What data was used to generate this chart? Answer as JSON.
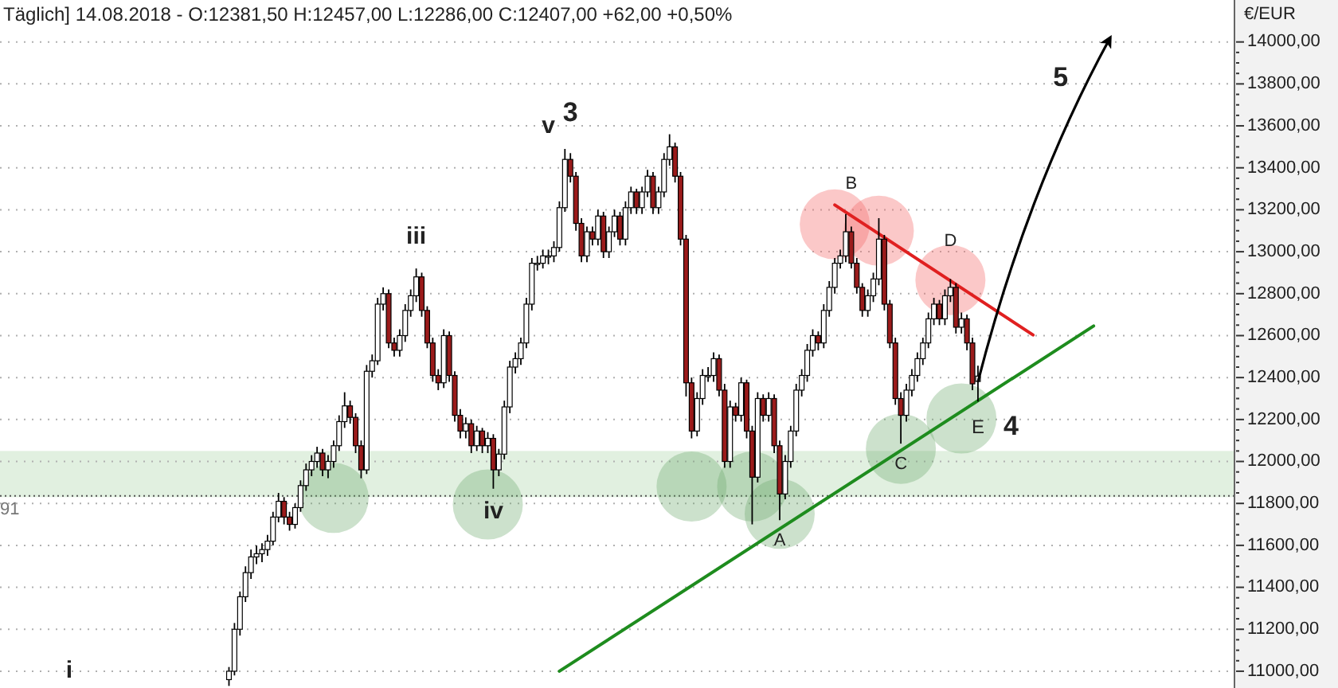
{
  "chart_data": {
    "type": "candlestick",
    "title": "Täglich] 14.08.2018 - O:12381,50 H:12457,00 L:12286,00 C:12407,00 +62,00 +0,50%",
    "ylabel": "€/EUR",
    "colors": [
      null,
      null,
      null,
      null,
      null,
      null,
      null,
      null,
      null,
      null,
      null,
      null,
      null,
      null,
      null,
      null,
      null,
      null,
      null,
      null,
      null,
      null,
      null,
      null,
      null,
      null,
      null,
      null,
      null,
      null,
      null,
      null,
      null,
      null,
      null,
      null,
      null,
      null,
      null,
      null,
      null,
      "#ffffff",
      "#ffffff",
      "#ffffff",
      "#ffffff",
      "#ffffff",
      "#ffffff",
      "#ffffff",
      "#ffffff",
      "#ffffff",
      "#ffffff",
      "#9b1b1b",
      "#9b1b1b",
      "#ffffff",
      "#ffffff",
      "#ffffff",
      "#ffffff",
      "#ffffff",
      "#9b1b1b",
      "#ffffff",
      "#ffffff",
      "#ffffff",
      "#ffffff",
      "#9b1b1b",
      "#9b1b1b",
      "#9b1b1b",
      "#ffffff",
      "#ffffff",
      "#ffffff",
      "#ffffff",
      "#9b1b1b",
      "#9b1b1b",
      "#ffffff",
      "#ffffff",
      "#ffffff",
      "#ffffff",
      "#9b1b1b",
      "#9b1b1b",
      "#9b1b1b",
      "#9b1b1b",
      "#ffffff",
      "#9b1b1b",
      "#9b1b1b",
      "#9b1b1b",
      "#ffffff",
      "#9b1b1b",
      "#ffffff",
      "#9b1b1b",
      "#ffffff",
      "#9b1b1b",
      "#ffffff",
      "#ffffff",
      "#ffffff",
      "#ffffff",
      "#ffffff",
      "#ffffff",
      "#ffffff",
      "#ffffff",
      "#ffffff",
      "#ffffff",
      "#ffffff",
      "#ffffff",
      "#ffffff",
      "#9b1b1b",
      "#9b1b1b",
      "#9b1b1b",
      "#ffffff",
      "#9b1b1b",
      "#ffffff",
      "#9b1b1b",
      "#ffffff",
      "#ffffff",
      "#9b1b1b",
      "#ffffff",
      "#ffffff",
      "#9b1b1b",
      "#ffffff",
      "#ffffff",
      "#9b1b1b",
      "#ffffff",
      "#ffffff",
      "#ffffff",
      "#9b1b1b",
      "#9b1b1b",
      "#9b1b1b",
      "#9b1b1b",
      "#ffffff",
      "#ffffff",
      "#ffffff",
      "#ffffff",
      "#9b1b1b",
      "#9b1b1b",
      "#ffffff",
      "#9b1b1b",
      "#ffffff",
      "#9b1b1b",
      "#9b1b1b",
      "#ffffff",
      "#9b1b1b",
      "#ffffff",
      "#9b1b1b",
      "#9b1b1b",
      "#ffffff",
      "#ffffff",
      "#ffffff",
      "#ffffff",
      "#ffffff",
      "#ffffff",
      "#9b1b1b",
      "#ffffff",
      "#ffffff",
      "#ffffff",
      "#ffffff",
      "#ffffff",
      "#9b1b1b",
      "#9b1b1b",
      "#9b1b1b",
      "#ffffff",
      "#ffffff",
      "#ffffff",
      "#9b1b1b",
      "#9b1b1b",
      "#9b1b1b",
      "#9b1b1b",
      "#ffffff",
      "#ffffff",
      "#ffffff",
      "#ffffff",
      "#ffffff",
      "#ffffff",
      "#9b1b1b",
      "#ffffff",
      "#ffffff",
      "#9b1b1b",
      "#ffffff",
      "#9b1b1b",
      "#9b1b1b",
      "#ffffff",
      null,
      null,
      null,
      null,
      null,
      null,
      null,
      null,
      null,
      null,
      null,
      null,
      null,
      null,
      null,
      null,
      null,
      null,
      null,
      null,
      null,
      null,
      null,
      null,
      null,
      null,
      null,
      null,
      null,
      null,
      null,
      null,
      null,
      null,
      null,
      null,
      null,
      null,
      null,
      null,
      null,
      null,
      null,
      null,
      null,
      null
    ],
    "grid": "y",
    "categories": [
      null,
      null,
      null,
      null,
      null,
      null,
      null,
      null,
      null,
      null,
      null,
      null,
      null,
      null,
      null,
      null,
      null,
      null,
      null,
      null,
      null,
      null,
      null,
      null,
      null,
      null,
      null,
      null,
      null,
      null,
      null,
      null,
      null,
      null,
      null,
      null,
      null,
      null,
      null,
      null,
      null,
      null,
      null,
      null,
      null,
      null,
      null,
      null,
      null,
      null,
      null,
      null,
      null,
      null,
      null,
      null,
      null,
      null,
      null,
      null,
      null,
      null,
      null,
      null,
      null,
      null,
      null,
      null,
      null,
      null,
      null,
      null,
      null,
      null,
      null,
      null,
      null,
      null,
      null,
      null,
      null,
      null,
      null,
      null,
      null,
      null,
      null,
      null,
      null,
      null,
      null,
      null,
      null,
      null,
      null,
      null,
      null,
      null,
      null,
      null,
      null,
      null,
      null,
      null,
      null,
      null,
      null,
      null,
      null,
      null,
      null,
      null,
      null,
      null,
      null,
      null,
      null,
      null,
      null,
      null,
      null,
      null,
      null,
      null,
      null,
      null,
      null,
      null,
      null,
      null,
      null,
      null,
      null,
      null,
      null,
      null,
      null,
      null,
      null,
      null,
      null,
      null,
      null,
      null,
      null,
      null,
      null,
      null,
      null,
      null,
      null,
      null,
      null,
      null,
      null,
      null,
      null,
      null,
      null,
      null,
      null,
      null,
      null,
      null,
      null,
      null,
      null,
      null,
      null,
      null,
      null,
      null,
      null,
      null,
      null,
      null,
      null,
      null,
      null,
      null,
      null,
      null,
      null,
      null,
      null,
      null,
      null,
      null,
      null,
      null,
      null,
      null,
      null,
      null,
      null,
      null,
      null,
      null,
      null,
      null,
      null,
      null,
      null,
      null,
      null,
      null,
      null,
      null,
      null,
      null,
      null,
      null,
      null,
      null,
      null,
      null,
      null,
      null,
      null,
      null,
      null,
      null,
      null,
      null
    ],
    "ohlc": [
      null,
      null,
      null,
      null,
      null,
      null,
      null,
      null,
      null,
      null,
      null,
      null,
      null,
      null,
      null,
      null,
      null,
      null,
      null,
      null,
      null,
      null,
      null,
      null,
      null,
      null,
      null,
      null,
      null,
      null,
      null,
      null,
      null,
      null,
      null,
      null,
      null,
      null,
      null,
      null,
      null,
      [
        10960,
        11020,
        10930,
        11000
      ],
      [
        11000,
        11230,
        10980,
        11200
      ],
      [
        11200,
        11380,
        11170,
        11355
      ],
      [
        11355,
        11500,
        11330,
        11470
      ],
      [
        11470,
        11580,
        11440,
        11545
      ],
      [
        11545,
        11600,
        11510,
        11560
      ],
      [
        11560,
        11610,
        11520,
        11580
      ],
      [
        11580,
        11650,
        11550,
        11620
      ],
      [
        11620,
        11760,
        11600,
        11735
      ],
      [
        11735,
        11850,
        11710,
        11810
      ],
      [
        11810,
        11830,
        11700,
        11735
      ],
      [
        11735,
        11760,
        11670,
        11700
      ],
      [
        11700,
        11800,
        11680,
        11780
      ],
      [
        11780,
        11910,
        11760,
        11885
      ],
      [
        11885,
        11990,
        11860,
        11960
      ],
      [
        11960,
        12030,
        11930,
        12000
      ],
      [
        12000,
        12070,
        11970,
        12040
      ],
      [
        12040,
        12060,
        11930,
        11960
      ],
      [
        11960,
        12030,
        11920,
        12000
      ],
      [
        12000,
        12100,
        11970,
        12075
      ],
      [
        12075,
        12220,
        12050,
        12190
      ],
      [
        12190,
        12330,
        12160,
        12265
      ],
      [
        12265,
        12290,
        12180,
        12210
      ],
      [
        12210,
        12230,
        12040,
        12075
      ],
      [
        12075,
        12100,
        11920,
        11960
      ],
      [
        11960,
        12460,
        11940,
        12430
      ],
      [
        12430,
        12510,
        12400,
        12480
      ],
      [
        12480,
        12780,
        12460,
        12750
      ],
      [
        12750,
        12830,
        12720,
        12800
      ],
      [
        12800,
        12820,
        12540,
        12565
      ],
      [
        12565,
        12590,
        12500,
        12530
      ],
      [
        12530,
        12630,
        12500,
        12600
      ],
      [
        12600,
        12750,
        12570,
        12720
      ],
      [
        12720,
        12820,
        12690,
        12790
      ],
      [
        12790,
        12920,
        12760,
        12880
      ],
      [
        12880,
        12900,
        12690,
        12720
      ],
      [
        12720,
        12740,
        12540,
        12565
      ],
      [
        12565,
        12590,
        12380,
        12410
      ],
      [
        12410,
        12440,
        12340,
        12375
      ],
      [
        12375,
        12630,
        12350,
        12600
      ],
      [
        12600,
        12620,
        12380,
        12410
      ],
      [
        12410,
        12430,
        12190,
        12220
      ],
      [
        12220,
        12250,
        12110,
        12145
      ],
      [
        12145,
        12210,
        12110,
        12180
      ],
      [
        12180,
        12200,
        12040,
        12075
      ],
      [
        12075,
        12170,
        12050,
        12145
      ],
      [
        12145,
        12160,
        12040,
        12075
      ],
      [
        12075,
        12140,
        12040,
        12110
      ],
      [
        12110,
        12130,
        11870,
        11960
      ],
      [
        11960,
        12060,
        11930,
        12035
      ],
      [
        12035,
        12290,
        12010,
        12260
      ],
      [
        12260,
        12480,
        12230,
        12450
      ],
      [
        12450,
        12520,
        12420,
        12490
      ],
      [
        12490,
        12590,
        12460,
        12565
      ],
      [
        12565,
        12780,
        12540,
        12750
      ],
      [
        12750,
        12970,
        12720,
        12945
      ],
      [
        12945,
        12980,
        12910,
        12945
      ],
      [
        12945,
        13010,
        12920,
        12980
      ],
      [
        12980,
        13010,
        12940,
        12980
      ],
      [
        12980,
        13050,
        12950,
        13020
      ],
      [
        13020,
        13240,
        13000,
        13210
      ],
      [
        13210,
        13490,
        13190,
        13440
      ],
      [
        13440,
        13470,
        13330,
        13360
      ],
      [
        13360,
        13380,
        13100,
        13135
      ],
      [
        13135,
        13160,
        12950,
        12980
      ],
      [
        12980,
        13120,
        12950,
        13095
      ],
      [
        13095,
        13120,
        13030,
        13060
      ],
      [
        13060,
        13200,
        13030,
        13170
      ],
      [
        13170,
        13190,
        12970,
        13000
      ],
      [
        13000,
        13120,
        12970,
        13095
      ],
      [
        13095,
        13200,
        13070,
        13170
      ],
      [
        13170,
        13190,
        13030,
        13060
      ],
      [
        13060,
        13240,
        13030,
        13210
      ],
      [
        13210,
        13310,
        13180,
        13285
      ],
      [
        13285,
        13300,
        13180,
        13210
      ],
      [
        13210,
        13310,
        13180,
        13285
      ],
      [
        13285,
        13390,
        13260,
        13360
      ],
      [
        13360,
        13380,
        13180,
        13210
      ],
      [
        13210,
        13310,
        13180,
        13285
      ],
      [
        13285,
        13470,
        13260,
        13440
      ],
      [
        13440,
        13560,
        13410,
        13500
      ],
      [
        13500,
        13520,
        13330,
        13360
      ],
      [
        13360,
        13380,
        13030,
        13060
      ],
      [
        13060,
        13080,
        12310,
        12375
      ],
      [
        12375,
        12400,
        12110,
        12145
      ],
      [
        12145,
        12330,
        12120,
        12300
      ],
      [
        12300,
        12440,
        12270,
        12410
      ],
      [
        12410,
        12450,
        12380,
        12410
      ],
      [
        12410,
        12520,
        12380,
        12490
      ],
      [
        12490,
        12510,
        12310,
        12340
      ],
      [
        12340,
        12370,
        11970,
        12000
      ],
      [
        12000,
        12290,
        11970,
        12260
      ],
      [
        12260,
        12280,
        12190,
        12220
      ],
      [
        12220,
        12400,
        12190,
        12375
      ],
      [
        12375,
        12390,
        12110,
        12145
      ],
      [
        12145,
        12170,
        11700,
        11925
      ],
      [
        11925,
        12330,
        11900,
        12300
      ],
      [
        12300,
        12320,
        12190,
        12220
      ],
      [
        12220,
        12330,
        12190,
        12300
      ],
      [
        12300,
        12320,
        12040,
        12075
      ],
      [
        12075,
        12100,
        11720,
        11845
      ],
      [
        11845,
        12030,
        11820,
        12000
      ],
      [
        12000,
        12170,
        11970,
        12145
      ],
      [
        12145,
        12370,
        12120,
        12340
      ],
      [
        12340,
        12440,
        12310,
        12410
      ],
      [
        12410,
        12560,
        12380,
        12530
      ],
      [
        12530,
        12630,
        12500,
        12600
      ],
      [
        12600,
        12620,
        12530,
        12565
      ],
      [
        12565,
        12750,
        12540,
        12720
      ],
      [
        12720,
        12860,
        12690,
        12830
      ],
      [
        12830,
        12970,
        12800,
        12945
      ],
      [
        12945,
        13010,
        12920,
        12980
      ],
      [
        12980,
        13180,
        12950,
        13095
      ],
      [
        13095,
        13120,
        12920,
        12945
      ],
      [
        12945,
        12970,
        12800,
        12830
      ],
      [
        12830,
        12850,
        12690,
        12720
      ],
      [
        12720,
        12820,
        12690,
        12790
      ],
      [
        12790,
        12900,
        12760,
        12870
      ],
      [
        12870,
        13160,
        12840,
        13060
      ],
      [
        13060,
        13080,
        12720,
        12750
      ],
      [
        12750,
        12770,
        12540,
        12565
      ],
      [
        12565,
        12590,
        12270,
        12300
      ],
      [
        12300,
        12330,
        12085,
        12220
      ],
      [
        12220,
        12370,
        12190,
        12340
      ],
      [
        12340,
        12440,
        12310,
        12410
      ],
      [
        12410,
        12520,
        12380,
        12490
      ],
      [
        12490,
        12590,
        12460,
        12565
      ],
      [
        12565,
        12710,
        12540,
        12680
      ],
      [
        12680,
        12780,
        12650,
        12750
      ],
      [
        12750,
        12770,
        12650,
        12680
      ],
      [
        12680,
        12820,
        12650,
        12790
      ],
      [
        12790,
        12870,
        12760,
        12830
      ],
      [
        12830,
        12850,
        12610,
        12640
      ],
      [
        12640,
        12710,
        12610,
        12680
      ],
      [
        12680,
        12700,
        12530,
        12565
      ],
      [
        12565,
        12590,
        12340,
        12370
      ],
      [
        12381.5,
        12457,
        12286,
        12407
      ],
      null,
      null,
      null,
      null,
      null,
      null,
      null,
      null,
      null,
      null,
      null,
      null,
      null,
      null,
      null,
      null,
      null,
      null,
      null,
      null,
      null,
      null,
      null,
      null,
      null,
      null,
      null,
      null,
      null,
      null,
      null,
      null,
      null,
      null,
      null,
      null,
      null,
      null,
      null,
      null,
      null,
      null,
      null,
      null,
      null,
      null
    ],
    "series": [
      {
        "type": "line",
        "color": "#1e8c1e",
        "values": [
          null,
          null,
          null,
          null,
          null,
          null,
          null,
          null,
          null,
          null,
          null,
          null,
          null,
          null,
          null,
          null,
          null,
          null,
          null,
          null,
          null,
          null,
          null,
          null,
          null,
          null,
          null,
          null,
          null,
          null,
          null,
          null,
          null,
          null,
          null,
          null,
          null,
          null,
          null,
          null,
          null,
          null,
          null,
          null,
          null,
          null,
          null,
          null,
          null,
          null,
          null,
          null,
          null,
          null,
          null,
          null,
          null,
          null,
          null,
          null,
          null,
          null,
          null,
          null,
          null,
          null,
          null,
          null,
          null,
          null,
          null,
          null,
          null,
          null,
          null,
          null,
          null,
          null,
          null,
          null,
          null,
          null,
          null,
          null,
          null,
          null,
          null,
          null,
          null,
          null,
          null,
          null,
          null,
          null,
          null,
          null,
          null,
          null,
          null,
          null,
          null,
          11000,
          null,
          null,
          null,
          null,
          null,
          null,
          null,
          null,
          null,
          null,
          null,
          null,
          null,
          null,
          null,
          null,
          null,
          null,
          null,
          null,
          null,
          null,
          null,
          null,
          null,
          null,
          null,
          null,
          null,
          null,
          null,
          null,
          null,
          null,
          null,
          null,
          null,
          null,
          null,
          null,
          null,
          null,
          null,
          null,
          null,
          null,
          null,
          null,
          null,
          null,
          null,
          null,
          null,
          null,
          null,
          null,
          null,
          null,
          null,
          null,
          null,
          null,
          null,
          null,
          null,
          null,
          null,
          null,
          null,
          null,
          null,
          null,
          null,
          null,
          null,
          null,
          null,
          null,
          null,
          null,
          null,
          null,
          null,
          null,
          null,
          null,
          null,
          null,
          null,
          null,
          null,
          null,
          null,
          null,
          null,
          null,
          12646,
          null,
          null,
          null,
          null,
          null,
          null,
          null,
          null,
          null,
          null,
          null,
          null,
          null,
          null,
          null,
          null,
          null,
          null,
          null,
          null,
          null,
          null,
          null,
          null,
          null
        ]
      },
      {
        "type": "line",
        "color": "#e02020",
        "values": [
          null,
          null,
          null,
          null,
          null,
          null,
          null,
          null,
          null,
          null,
          null,
          null,
          null,
          null,
          null,
          null,
          null,
          null,
          null,
          null,
          null,
          null,
          null,
          null,
          null,
          null,
          null,
          null,
          null,
          null,
          null,
          null,
          null,
          null,
          null,
          null,
          null,
          null,
          null,
          null,
          null,
          null,
          null,
          null,
          null,
          null,
          null,
          null,
          null,
          null,
          null,
          null,
          null,
          null,
          null,
          null,
          null,
          null,
          null,
          null,
          null,
          null,
          null,
          null,
          null,
          null,
          null,
          null,
          null,
          null,
          null,
          null,
          null,
          null,
          null,
          null,
          null,
          null,
          null,
          null,
          null,
          null,
          null,
          null,
          null,
          null,
          null,
          null,
          null,
          null,
          null,
          null,
          null,
          null,
          null,
          null,
          null,
          null,
          null,
          null,
          null,
          null,
          null,
          null,
          null,
          null,
          null,
          null,
          null,
          null,
          null,
          null,
          null,
          null,
          null,
          null,
          null,
          null,
          null,
          null,
          null,
          null,
          null,
          null,
          null,
          null,
          null,
          null,
          null,
          null,
          null,
          null,
          null,
          null,
          null,
          null,
          null,
          null,
          null,
          null,
          null,
          null,
          null,
          null,
          null,
          null,
          null,
          null,
          null,
          null,
          null,
          13223,
          null,
          null,
          null,
          null,
          null,
          null,
          null,
          null,
          null,
          null,
          null,
          null,
          null,
          null,
          null,
          null,
          null,
          null,
          null,
          null,
          null,
          null,
          null,
          null,
          null,
          null,
          null,
          null,
          null,
          null,
          null,
          null,
          null,
          null,
          null,
          12603,
          null,
          null,
          null,
          null,
          null,
          null,
          null,
          null,
          null,
          null,
          null,
          null,
          null,
          null,
          null,
          null,
          null,
          null,
          null,
          null,
          null,
          null,
          null,
          null,
          null,
          null,
          null,
          null,
          null,
          null,
          null,
          null,
          null,
          null,
          null,
          null
        ]
      }
    ],
    "ylim": [
      10920,
      14200
    ],
    "yticks": [
      {
        "value": 11000,
        "label": "11000,00"
      },
      {
        "value": 11050,
        "label": null
      },
      {
        "value": 11100,
        "label": null
      },
      {
        "value": 11150,
        "label": null
      },
      {
        "value": 11200,
        "label": "11200,00"
      },
      {
        "value": 11250,
        "label": null
      },
      {
        "value": 11300,
        "label": null
      },
      {
        "value": 11350,
        "label": null
      },
      {
        "value": 11400,
        "label": "11400,00"
      },
      {
        "value": 11450,
        "label": null
      },
      {
        "value": 11500,
        "label": null
      },
      {
        "value": 11550,
        "label": null
      },
      {
        "value": 11600,
        "label": "11600,00"
      },
      {
        "value": 11650,
        "label": null
      },
      {
        "value": 11700,
        "label": null
      },
      {
        "value": 11750,
        "label": null
      },
      {
        "value": 11800,
        "label": "11800,00"
      },
      {
        "value": 11850,
        "label": null
      },
      {
        "value": 11900,
        "label": null
      },
      {
        "value": 11950,
        "label": null
      },
      {
        "value": 12000,
        "label": "12000,00"
      },
      {
        "value": 12050,
        "label": null
      },
      {
        "value": 12100,
        "label": null
      },
      {
        "value": 12150,
        "label": null
      },
      {
        "value": 12200,
        "label": "12200,00"
      },
      {
        "value": 12250,
        "label": null
      },
      {
        "value": 12300,
        "label": null
      },
      {
        "value": 12350,
        "label": null
      },
      {
        "value": 12400,
        "label": "12400,00"
      },
      {
        "value": 12450,
        "label": null
      },
      {
        "value": 12500,
        "label": null
      },
      {
        "value": 12550,
        "label": null
      },
      {
        "value": 12600,
        "label": "12600,00"
      },
      {
        "value": 12650,
        "label": null
      },
      {
        "value": 12700,
        "label": null
      },
      {
        "value": 12750,
        "label": null
      },
      {
        "value": 12800,
        "label": "12800,00"
      },
      {
        "value": 12850,
        "label": null
      },
      {
        "value": 12900,
        "label": null
      },
      {
        "value": 12950,
        "label": null
      },
      {
        "value": 13000,
        "label": "13000,00"
      },
      {
        "value": 13050,
        "label": null
      },
      {
        "value": 13100,
        "label": null
      },
      {
        "value": 13150,
        "label": null
      },
      {
        "value": 13200,
        "label": "13200,00"
      },
      {
        "value": 13250,
        "label": null
      },
      {
        "value": 13300,
        "label": null
      },
      {
        "value": 13350,
        "label": null
      },
      {
        "value": 13400,
        "label": "13400,00"
      },
      {
        "value": 13450,
        "label": null
      },
      {
        "value": 13500,
        "label": null
      },
      {
        "value": 13550,
        "label": null
      },
      {
        "value": 13600,
        "label": "13600,00"
      },
      {
        "value": 13650,
        "label": null
      },
      {
        "value": 13700,
        "label": null
      },
      {
        "value": 13750,
        "label": null
      },
      {
        "value": 13800,
        "label": "13800,00"
      },
      {
        "value": 13850,
        "label": null
      },
      {
        "value": 13900,
        "label": null
      },
      {
        "value": 13950,
        "label": null
      },
      {
        "value": 14000,
        "label": "14000,00"
      }
    ],
    "ref_lines": [
      {
        "axis": "y",
        "value": 11836,
        "color": "#555555",
        "line_style": "dotted"
      }
    ],
    "bands": [
      {
        "axis": "y",
        "from": 11830,
        "to": 12050,
        "color": "#dcedda"
      }
    ],
    "annotations": [
      "i",
      "iii",
      "iv",
      "v",
      "3",
      "A",
      "B",
      "C",
      "D",
      "E",
      "4",
      "5",
      "91"
    ]
  }
}
